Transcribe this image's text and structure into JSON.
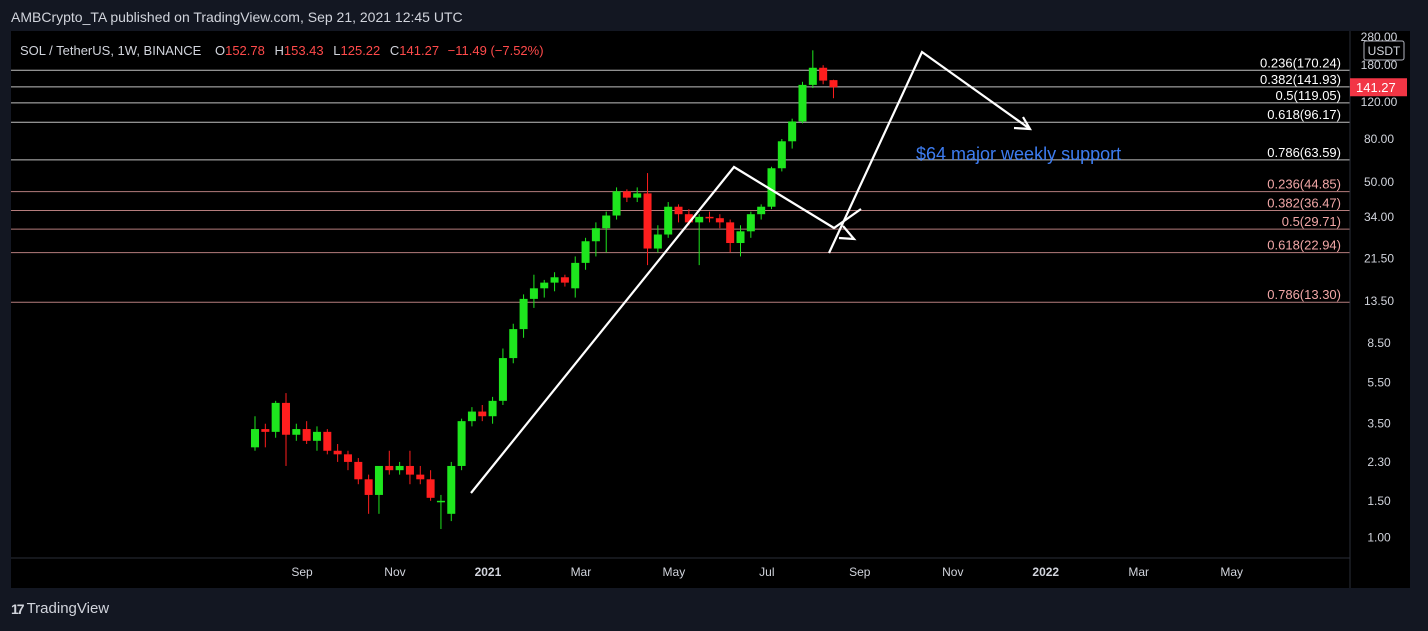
{
  "header": {
    "published": "AMBCrypto_TA published on TradingView.com, Sep 21, 2021 12:45 UTC"
  },
  "legend": {
    "symbol": "SOL / TetherUS, 1W, BINANCE",
    "open_label": "O",
    "open_value": "152.78",
    "high_label": "H",
    "high_value": "153.43",
    "low_label": "L",
    "low_value": "125.22",
    "close_label": "C",
    "close_value": "141.27",
    "change": "−11.49 (−7.52%)"
  },
  "footer": {
    "logo_text": "TradingView"
  },
  "colors": {
    "up": "#1ee61e",
    "down": "#ff1e1e",
    "fib_upper": "#ffffff",
    "fib_lower": "#f2a7a7",
    "annotation": "#3d7cf0",
    "price_badge": "#f23645"
  },
  "chart_data": {
    "type": "candlestick",
    "y_scale": "log",
    "ylim": [
      0.8,
      280
    ],
    "currency": "USDT",
    "last_price": "141.27",
    "x_ticks": [
      "Sep",
      "Nov",
      "2021",
      "Mar",
      "May",
      "Jul",
      "Sep",
      "Nov",
      "2022",
      "Mar",
      "May"
    ],
    "x_tick_weeks": [
      0,
      9,
      18,
      27,
      36,
      45,
      54,
      63,
      72,
      81,
      90
    ],
    "y_ticks": [
      "280.00",
      "180.00",
      "120.00",
      "80.00",
      "50.00",
      "34.00",
      "21.50",
      "13.50",
      "8.50",
      "5.50",
      "3.50",
      "2.30",
      "1.50",
      "1.00"
    ],
    "fib_upper": [
      {
        "label": "0.236(170.24)",
        "value": 170.24
      },
      {
        "label": "0.382(141.93)",
        "value": 141.93
      },
      {
        "label": "0.5(119.05)",
        "value": 119.05
      },
      {
        "label": "0.618(96.17)",
        "value": 96.17
      },
      {
        "label": "0.786(63.59)",
        "value": 63.59
      }
    ],
    "fib_lower": [
      {
        "label": "0.236(44.85)",
        "value": 44.85
      },
      {
        "label": "0.382(36.47)",
        "value": 36.47
      },
      {
        "label": "0.5(29.71)",
        "value": 29.71
      },
      {
        "label": "0.618(22.94)",
        "value": 22.94
      },
      {
        "label": "0.786(13.30)",
        "value": 13.3
      }
    ],
    "annotation": "$64 major weekly support",
    "candles": [
      {
        "o": 2.7,
        "h": 3.8,
        "l": 2.6,
        "c": 3.3
      },
      {
        "o": 3.3,
        "h": 3.5,
        "l": 2.7,
        "c": 3.2
      },
      {
        "o": 3.2,
        "h": 4.5,
        "l": 3.0,
        "c": 4.4
      },
      {
        "o": 4.4,
        "h": 4.9,
        "l": 2.2,
        "c": 3.1
      },
      {
        "o": 3.1,
        "h": 3.5,
        "l": 2.9,
        "c": 3.3
      },
      {
        "o": 3.3,
        "h": 3.6,
        "l": 2.8,
        "c": 2.9
      },
      {
        "o": 2.9,
        "h": 3.4,
        "l": 2.6,
        "c": 3.2
      },
      {
        "o": 3.2,
        "h": 3.3,
        "l": 2.5,
        "c": 2.6
      },
      {
        "o": 2.6,
        "h": 2.8,
        "l": 2.3,
        "c": 2.5
      },
      {
        "o": 2.5,
        "h": 2.6,
        "l": 2.1,
        "c": 2.3
      },
      {
        "o": 2.3,
        "h": 2.4,
        "l": 1.8,
        "c": 1.9
      },
      {
        "o": 1.9,
        "h": 2.0,
        "l": 1.3,
        "c": 1.6
      },
      {
        "o": 1.6,
        "h": 2.1,
        "l": 1.3,
        "c": 2.2
      },
      {
        "o": 2.2,
        "h": 2.6,
        "l": 2.0,
        "c": 2.1
      },
      {
        "o": 2.1,
        "h": 2.3,
        "l": 2.0,
        "c": 2.2
      },
      {
        "o": 2.2,
        "h": 2.6,
        "l": 1.8,
        "c": 2.0
      },
      {
        "o": 2.0,
        "h": 2.2,
        "l": 1.8,
        "c": 1.9
      },
      {
        "o": 1.9,
        "h": 2.1,
        "l": 1.5,
        "c": 1.55
      },
      {
        "o": 1.5,
        "h": 1.6,
        "l": 1.1,
        "c": 1.5
      },
      {
        "o": 1.3,
        "h": 2.3,
        "l": 1.2,
        "c": 2.2
      },
      {
        "o": 2.2,
        "h": 3.7,
        "l": 2.1,
        "c": 3.6
      },
      {
        "o": 3.6,
        "h": 4.2,
        "l": 3.4,
        "c": 4.0
      },
      {
        "o": 4.0,
        "h": 4.3,
        "l": 3.6,
        "c": 3.8
      },
      {
        "o": 3.8,
        "h": 4.7,
        "l": 3.5,
        "c": 4.5
      },
      {
        "o": 4.5,
        "h": 8.0,
        "l": 4.3,
        "c": 7.2
      },
      {
        "o": 7.2,
        "h": 10.5,
        "l": 6.8,
        "c": 9.9
      },
      {
        "o": 9.9,
        "h": 14.5,
        "l": 9.0,
        "c": 13.8
      },
      {
        "o": 13.8,
        "h": 18.0,
        "l": 12.5,
        "c": 15.5
      },
      {
        "o": 15.5,
        "h": 17.0,
        "l": 14.0,
        "c": 16.5
      },
      {
        "o": 16.5,
        "h": 18.5,
        "l": 15.0,
        "c": 17.5
      },
      {
        "o": 17.5,
        "h": 18.0,
        "l": 15.8,
        "c": 16.5
      },
      {
        "o": 15.5,
        "h": 22.0,
        "l": 14.0,
        "c": 20.5
      },
      {
        "o": 20.5,
        "h": 27.0,
        "l": 19.0,
        "c": 26.0
      },
      {
        "o": 26.0,
        "h": 32.0,
        "l": 22.0,
        "c": 30.0
      },
      {
        "o": 30.0,
        "h": 36.0,
        "l": 23.0,
        "c": 34.5
      },
      {
        "o": 34.5,
        "h": 47.0,
        "l": 33.0,
        "c": 45.0
      },
      {
        "o": 45.0,
        "h": 46.0,
        "l": 40.0,
        "c": 42.0
      },
      {
        "o": 42.0,
        "h": 47.0,
        "l": 40.0,
        "c": 44.0
      },
      {
        "o": 44.0,
        "h": 55.0,
        "l": 20.0,
        "c": 24.0
      },
      {
        "o": 24.0,
        "h": 31.0,
        "l": 23.0,
        "c": 28.0
      },
      {
        "o": 28.0,
        "h": 40.0,
        "l": 27.0,
        "c": 38.0
      },
      {
        "o": 38.0,
        "h": 39.0,
        "l": 32.0,
        "c": 35.0
      },
      {
        "o": 35.0,
        "h": 37.0,
        "l": 31.0,
        "c": 32.0
      },
      {
        "o": 32.0,
        "h": 35.0,
        "l": 20.0,
        "c": 34.0
      },
      {
        "o": 34.0,
        "h": 36.0,
        "l": 32.0,
        "c": 33.5
      },
      {
        "o": 33.5,
        "h": 35.0,
        "l": 30.0,
        "c": 32.0
      },
      {
        "o": 32.0,
        "h": 33.0,
        "l": 23.0,
        "c": 25.5
      },
      {
        "o": 25.5,
        "h": 31.0,
        "l": 22.0,
        "c": 29.0
      },
      {
        "o": 29.0,
        "h": 36.0,
        "l": 27.0,
        "c": 35.0
      },
      {
        "o": 35.0,
        "h": 39.0,
        "l": 33.0,
        "c": 38.0
      },
      {
        "o": 38.0,
        "h": 59.0,
        "l": 37.0,
        "c": 58.0
      },
      {
        "o": 58.0,
        "h": 80.0,
        "l": 56.0,
        "c": 78.0
      },
      {
        "o": 78.0,
        "h": 100.0,
        "l": 72.0,
        "c": 97.0
      },
      {
        "o": 97.0,
        "h": 150.0,
        "l": 95.0,
        "c": 145.0
      },
      {
        "o": 145.0,
        "h": 212.0,
        "l": 140.0,
        "c": 175.0
      },
      {
        "o": 175.0,
        "h": 180.0,
        "l": 146.0,
        "c": 152.0
      },
      {
        "o": 152.78,
        "h": 153.43,
        "l": 125.22,
        "c": 141.27
      }
    ]
  }
}
